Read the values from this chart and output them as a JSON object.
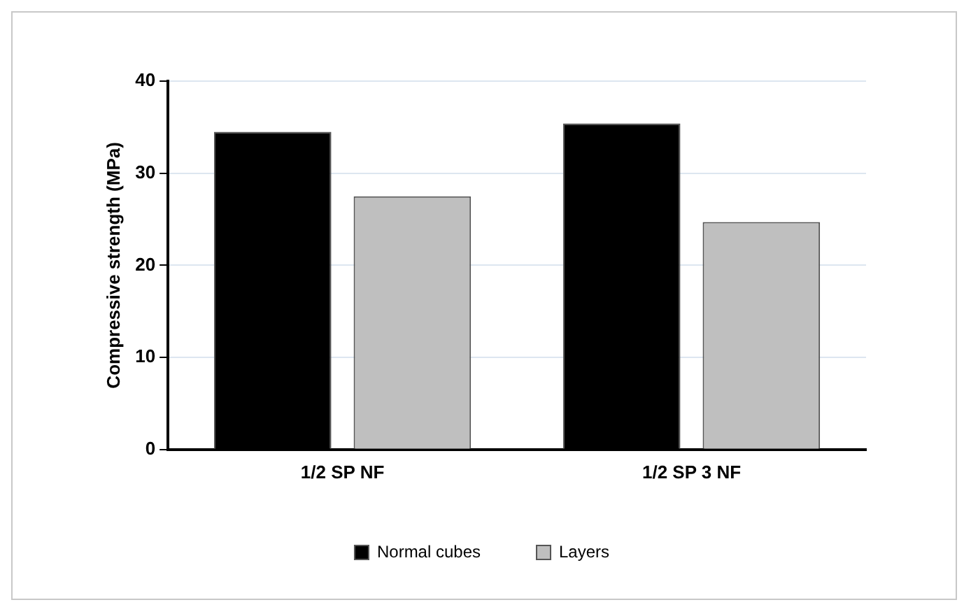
{
  "chart_data": {
    "type": "bar",
    "categories": [
      "1/2 SP NF",
      "1/2 SP 3 NF"
    ],
    "series": [
      {
        "name": "Normal cubes",
        "color": "#000000",
        "values": [
          34.5,
          35.4
        ]
      },
      {
        "name": "Layers",
        "color": "#bfbfbf",
        "values": [
          27.5,
          24.7
        ]
      }
    ],
    "ylabel": "Compressive strength (MPa)",
    "ylim": [
      0,
      40
    ],
    "yticks": [
      0,
      10,
      20,
      30,
      40
    ],
    "grid": "y",
    "legend": "bottom"
  }
}
